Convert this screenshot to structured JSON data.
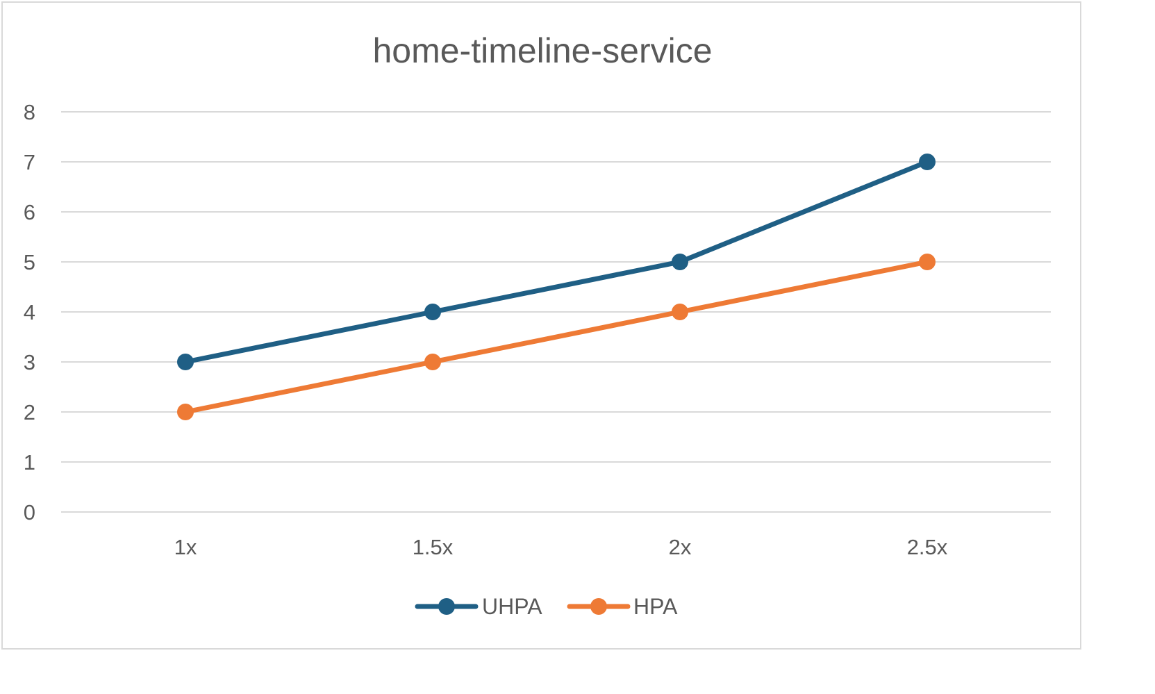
{
  "chart_data": {
    "type": "line",
    "title": "home-timeline-service",
    "categories": [
      "1x",
      "1.5x",
      "2x",
      "2.5x"
    ],
    "series": [
      {
        "name": "UHPA",
        "values": [
          3,
          4,
          5,
          7
        ],
        "color": "#1f5f85"
      },
      {
        "name": "HPA",
        "values": [
          2,
          3,
          4,
          5
        ],
        "color": "#ee7a35"
      }
    ],
    "ylim": [
      0,
      8
    ],
    "yticks": [
      0,
      1,
      2,
      3,
      4,
      5,
      6,
      7,
      8
    ],
    "grid": true,
    "legend": "bottom"
  }
}
